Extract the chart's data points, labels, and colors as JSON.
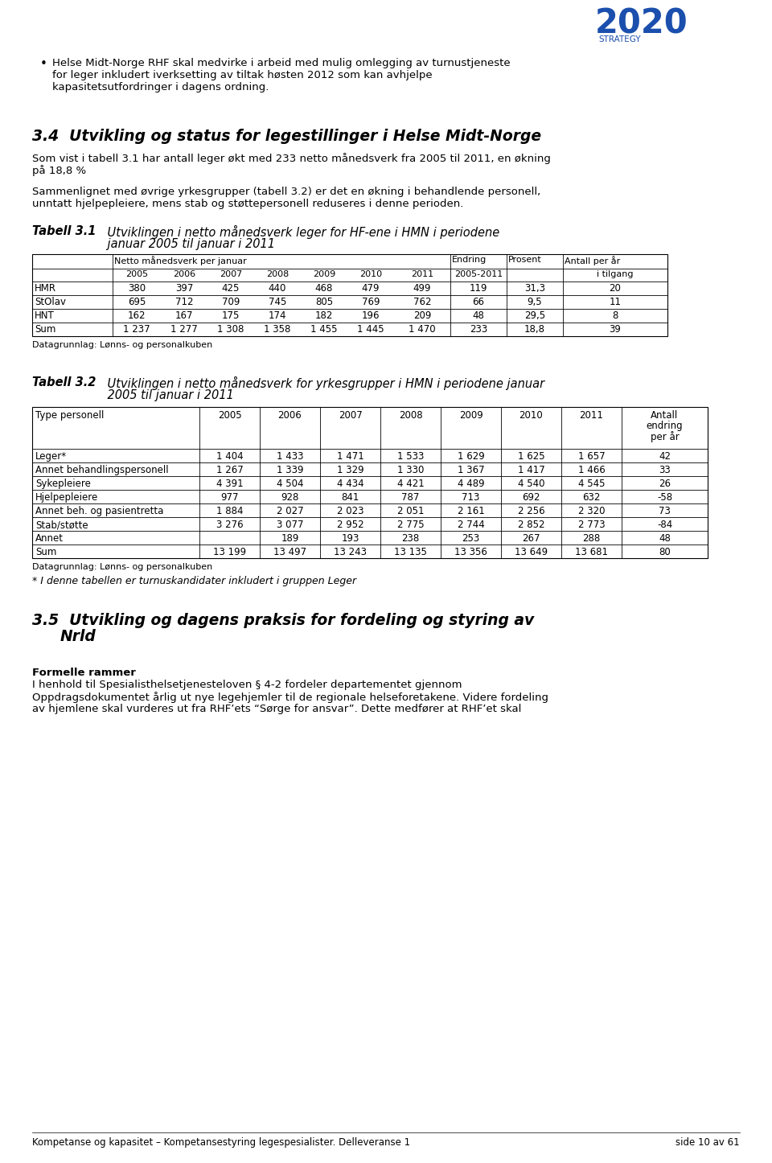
{
  "page_bg": "#ffffff",
  "bullet_text": "Helse Midt-Norge RHF skal medvirke i arbeid med mulig omlegging av turnustjeneste\nfor leger inkludert iverksetting av tiltak høsten 2012 som kan avhjelpe\nkapasitetsutfordringer i dagens ordning.",
  "section_title": "3.4  Utvikling og status for legestillinger i Helse Midt-Norge",
  "section_body1": "Som vist i tabell 3.1 har antall leger økt med 233 netto månedsverk fra 2005 til 2011, en økning\npå 18,8 %",
  "section_body2": "Sammenlignet med øvrige yrkesgrupper (tabell 3.2) er det en økning i behandlende personell,\nunntatt hjelpepleiere, mens stab og støttepersonell reduseres i denne perioden.",
  "table1_title_bold": "Tabell 3.1",
  "table1_rows": [
    [
      "HMR",
      "380",
      "397",
      "425",
      "440",
      "468",
      "479",
      "499",
      "119",
      "31,3",
      "20"
    ],
    [
      "StOlav",
      "695",
      "712",
      "709",
      "745",
      "805",
      "769",
      "762",
      "66",
      "9,5",
      "11"
    ],
    [
      "HNT",
      "162",
      "167",
      "175",
      "174",
      "182",
      "196",
      "209",
      "48",
      "29,5",
      "8"
    ],
    [
      "Sum",
      "1 237",
      "1 277",
      "1 308",
      "1 358",
      "1 455",
      "1 445",
      "1 470",
      "233",
      "18,8",
      "39"
    ]
  ],
  "table1_source": "Datagrunnlag: Lønns- og personalkuben",
  "table2_title_bold": "Tabell 3.2",
  "table2_rows": [
    [
      "Leger*",
      "1 404",
      "1 433",
      "1 471",
      "1 533",
      "1 629",
      "1 625",
      "1 657",
      "42"
    ],
    [
      "Annet behandlingspersonell",
      "1 267",
      "1 339",
      "1 329",
      "1 330",
      "1 367",
      "1 417",
      "1 466",
      "33"
    ],
    [
      "Sykepleiere",
      "4 391",
      "4 504",
      "4 434",
      "4 421",
      "4 489",
      "4 540",
      "4 545",
      "26"
    ],
    [
      "Hjelpepleiere",
      "977",
      "928",
      "841",
      "787",
      "713",
      "692",
      "632",
      "-58"
    ],
    [
      "Annet beh. og pasientretta",
      "1 884",
      "2 027",
      "2 023",
      "2 051",
      "2 161",
      "2 256",
      "2 320",
      "73"
    ],
    [
      "Stab/støtte",
      "3 276",
      "3 077",
      "2 952",
      "2 775",
      "2 744",
      "2 852",
      "2 773",
      "-84"
    ],
    [
      "Annet",
      "",
      "189",
      "193",
      "238",
      "253",
      "267",
      "288",
      "48"
    ],
    [
      "Sum",
      "13 199",
      "13 497",
      "13 243",
      "13 135",
      "13 356",
      "13 649",
      "13 681",
      "80"
    ]
  ],
  "table2_source": "Datagrunnlag: Lønns- og personalkuben",
  "footnote": "* I denne tabellen er turnuskandidater inkludert i gruppen Leger",
  "formelle_header": "Formelle rammer",
  "formelle_body": "I henhold til Spesialisthelsetjenesteloven § 4-2 fordeler departementet gjennom\nOppdragsdokumentet årlig ut nye legehjemler til de regionale helseforetakene. Videre fordeling\nav hjemlene skal vurderes ut fra RHF’ets “Sørge for ansvar”. Dette medfører at RHF’et skal",
  "footer_left": "Kompetanse og kapasitet – Kompetansestyring legespesialister. Delleveranse 1",
  "footer_right": "side 10 av 61"
}
